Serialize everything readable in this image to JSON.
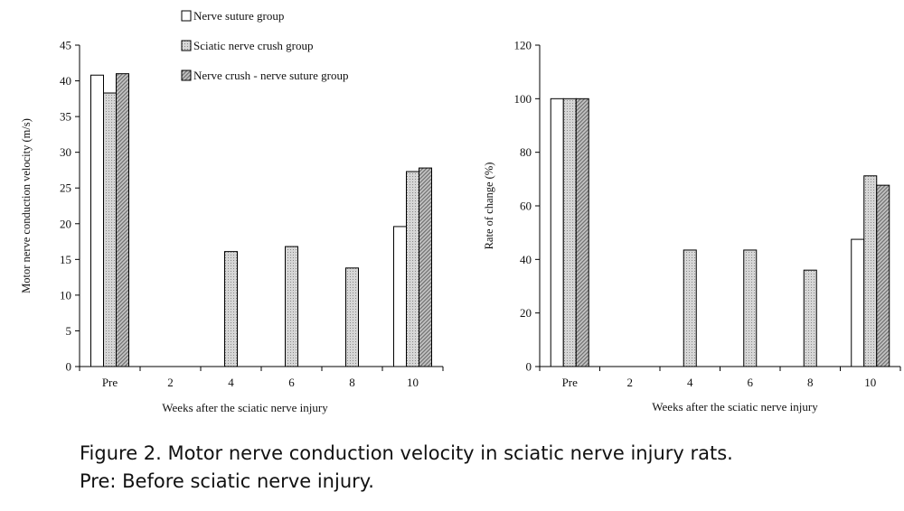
{
  "chart_data": [
    {
      "type": "bar",
      "categories": [
        "Pre",
        "2",
        "4",
        "6",
        "8",
        "10"
      ],
      "xlabel": "Weeks after the sciatic nerve injury",
      "ylabel": "Motor nerve conduction velocity (m/s)",
      "ylim": [
        0,
        45
      ],
      "yticks": [
        0,
        5,
        10,
        15,
        20,
        25,
        30,
        35,
        40,
        45
      ],
      "grid": false,
      "series": [
        {
          "name": "Nerve suture group",
          "values": [
            40.8,
            null,
            null,
            null,
            null,
            19.6
          ]
        },
        {
          "name": "Sciatic nerve crush group",
          "values": [
            38.3,
            null,
            16.1,
            16.8,
            13.8,
            27.3
          ]
        },
        {
          "name": "Nerve crush - nerve suture group",
          "values": [
            41.0,
            null,
            null,
            null,
            null,
            27.8
          ]
        }
      ]
    },
    {
      "type": "bar",
      "categories": [
        "Pre",
        "2",
        "4",
        "6",
        "8",
        "10"
      ],
      "xlabel": "Weeks after the sciatic nerve injury",
      "ylabel": "Rate of change (%)",
      "ylim": [
        0,
        120
      ],
      "yticks": [
        0,
        20,
        40,
        60,
        80,
        100,
        120
      ],
      "grid": false,
      "series": [
        {
          "name": "Nerve suture group",
          "values": [
            100,
            null,
            null,
            null,
            null,
            47.5
          ]
        },
        {
          "name": "Sciatic nerve crush group",
          "values": [
            100,
            null,
            43.5,
            43.5,
            36.0,
            71.2
          ]
        },
        {
          "name": "Nerve crush - nerve suture group",
          "values": [
            100,
            null,
            null,
            null,
            null,
            67.7
          ]
        }
      ]
    }
  ],
  "legend": {
    "placement": "top-center",
    "items": [
      {
        "label": "Nerve suture group",
        "fill": "#ffffff"
      },
      {
        "label": "Sciatic nerve crush group",
        "fill": "#cfcfcf"
      },
      {
        "label": "Nerve crush - nerve suture group",
        "fill": "#b8b8b8"
      }
    ]
  },
  "caption": {
    "line1": "Figure 2. Motor nerve conduction velocity in sciatic nerve injury rats.",
    "line2": "Pre: Before sciatic nerve injury."
  }
}
